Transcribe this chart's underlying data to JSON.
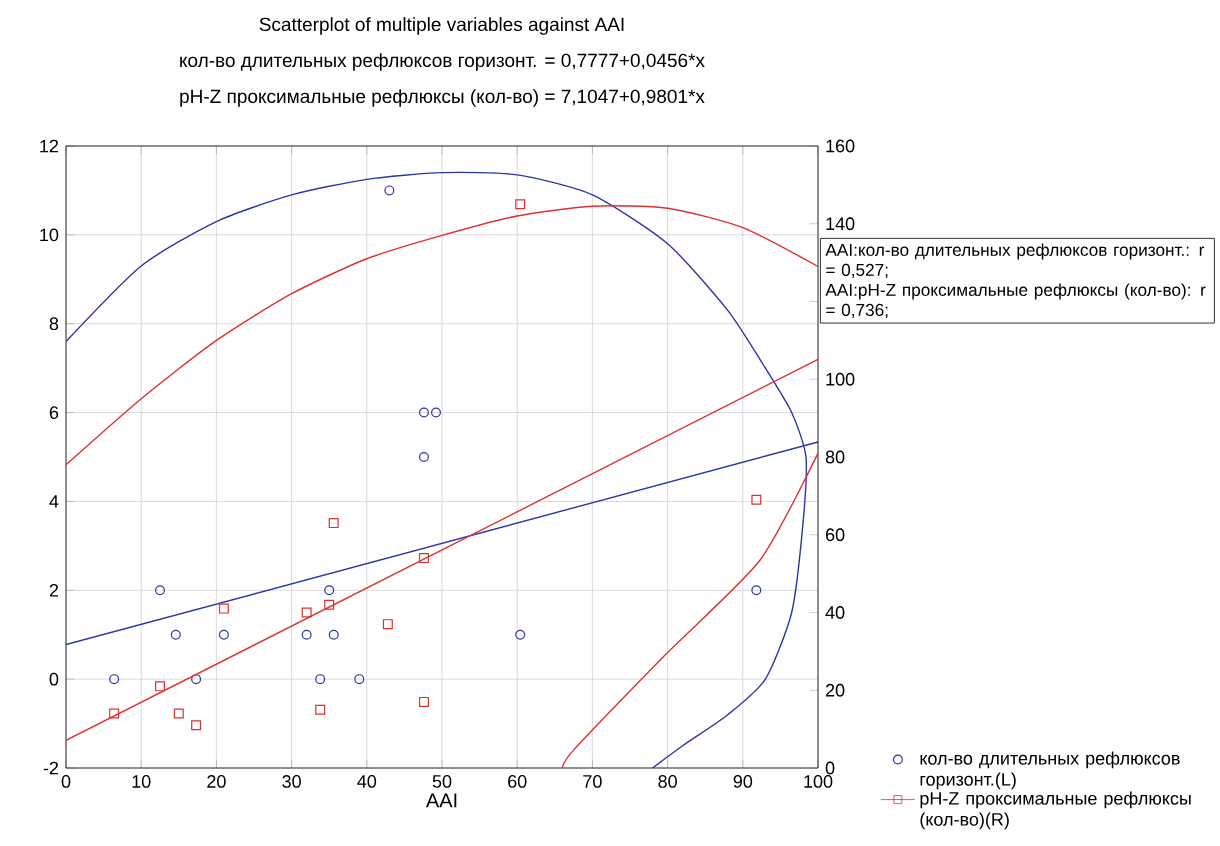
{
  "chart_data": {
    "type": "scatter",
    "title": "Scatterplot of multiple variables against AAI",
    "annotations": [
      "кол-во длительных рефлюксов горизонт. = 0,7777+0,0456*x",
      "pH-Z  проксимальные рефлюксы (кол-во) = 7,1047+0,9801*x",
      "AAI:кол-во длительных рефлюксов горизонт.:   r = 0,527;",
      "AAI:pH-Z  проксимальные рефлюксы (кол-во):   r = 0,736;"
    ],
    "xlabel": "AAI",
    "xlim": [
      0,
      100
    ],
    "xticks": [
      0,
      10,
      20,
      30,
      40,
      50,
      60,
      70,
      80,
      90,
      100
    ],
    "ylim": [
      -2,
      12
    ],
    "yticks": [
      -2,
      0,
      2,
      4,
      6,
      8,
      10,
      12
    ],
    "y2lim": [
      0,
      160
    ],
    "y2ticks": [
      0,
      20,
      40,
      60,
      80,
      100,
      {
        "value": 120,
        "label": null
      },
      140,
      160
    ],
    "grid": true,
    "legend": "bottom right",
    "series": [
      {
        "name": "кол-во длительных рефлюксов горизонт.(L)",
        "color": "#2c35a8",
        "marker": "circle",
        "x": [
          6.4,
          12.5,
          14.6,
          17.3,
          21,
          32,
          33.8,
          35,
          35.6,
          39,
          43,
          47.6,
          49.2,
          47.6,
          60.4,
          91.8
        ],
        "values": [
          0,
          2,
          1,
          0,
          1,
          1,
          0,
          2,
          1,
          0,
          11,
          6,
          6,
          5,
          1,
          2
        ]
      },
      {
        "name": "pH-Z  проксимальные рефлюксы  (кол-во)(R)",
        "color": "#e03030",
        "marker": "square",
        "axis": "y2",
        "x": [
          6.4,
          12.5,
          15,
          17.3,
          21,
          32,
          33.8,
          35,
          35.6,
          42.8,
          47.6,
          47.6,
          60.4,
          91.8
        ],
        "values": [
          14,
          21,
          14,
          11,
          41,
          40,
          15,
          42,
          63,
          37,
          17,
          54,
          145,
          69
        ]
      },
      {
        "type": "line",
        "color": "#2c35a8",
        "marker": "none",
        "x": [
          0,
          100
        ],
        "values": [
          0.7777,
          5.3377
        ]
      },
      {
        "type": "line",
        "color": "#e03030",
        "marker": "none",
        "axis": "y2",
        "x": [
          0,
          100
        ],
        "values": [
          7.1047,
          105.1147
        ]
      },
      {
        "type": "line",
        "color": "#2c35a8",
        "marker": "none",
        "x": [
          0,
          10,
          20,
          30,
          40,
          50,
          60,
          70,
          80,
          88,
          93,
          96.5,
          98.4,
          98,
          96.5,
          93,
          88,
          82,
          78
        ],
        "values": [
          7.6,
          9.3,
          10.3,
          10.9,
          11.25,
          11.4,
          11.35,
          10.9,
          9.8,
          8.3,
          7,
          6,
          5,
          3.5,
          1.5,
          0,
          -0.8,
          -1.5,
          -2
        ]
      },
      {
        "type": "line",
        "color": "#e03030",
        "marker": "none",
        "axis": "y2",
        "x": [
          0,
          10,
          20,
          30,
          40,
          50,
          60,
          70,
          80,
          90,
          100
        ],
        "values": [
          78,
          95,
          110,
          122,
          131,
          137,
          142,
          144.5,
          144,
          139,
          129
        ]
      },
      {
        "type": "line",
        "color": "#e03030",
        "marker": "none",
        "axis": "y2",
        "x": [
          100,
          92.3,
          79.8,
          67.5,
          66
        ],
        "values": [
          81,
          53.5,
          29.3,
          4.6,
          0
        ]
      }
    ]
  }
}
